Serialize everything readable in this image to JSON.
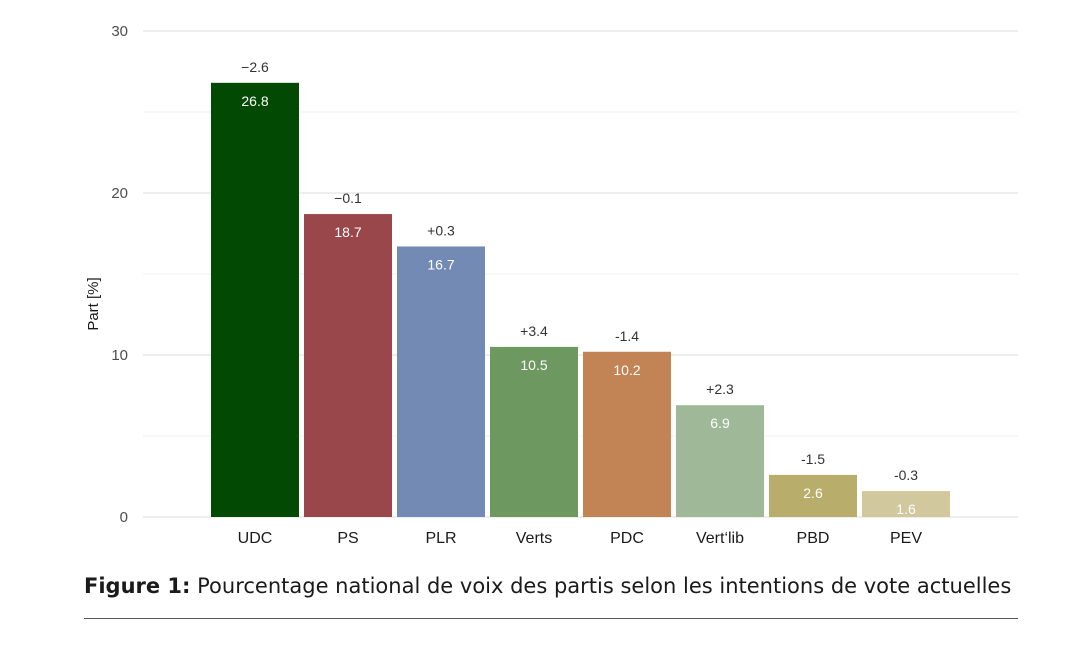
{
  "chart_data": {
    "type": "bar",
    "categories": [
      "UDC",
      "PS",
      "PLR",
      "Verts",
      "PDC",
      "Vert‘lib",
      "PBD",
      "PEV"
    ],
    "values": [
      26.8,
      18.7,
      16.7,
      10.5,
      10.2,
      6.9,
      2.6,
      1.6
    ],
    "value_labels": [
      "26.8",
      "18.7",
      "16.7",
      "10.5",
      "10.2",
      "6.9",
      "2.6",
      "1.6"
    ],
    "change_labels": [
      "−2.6",
      "−0.1",
      "+0.3",
      "+3.4",
      "-1.4",
      "+2.3",
      "-1.5",
      "-0.3"
    ],
    "colors": [
      "#024a03",
      "#9a474c",
      "#728ab4",
      "#6d9860",
      "#c28455",
      "#9eb898",
      "#b8ad6b",
      "#d1c89d"
    ],
    "xlabel": "",
    "ylabel": "Part [%]",
    "ylim": [
      0,
      30
    ],
    "yticks": [
      0,
      10,
      20,
      30
    ],
    "grid": true,
    "legend": "none"
  },
  "caption": {
    "prefix": "Figure 1:",
    "text": " Pourcentage national de voix des partis selon les intentions de vote actuelles"
  }
}
